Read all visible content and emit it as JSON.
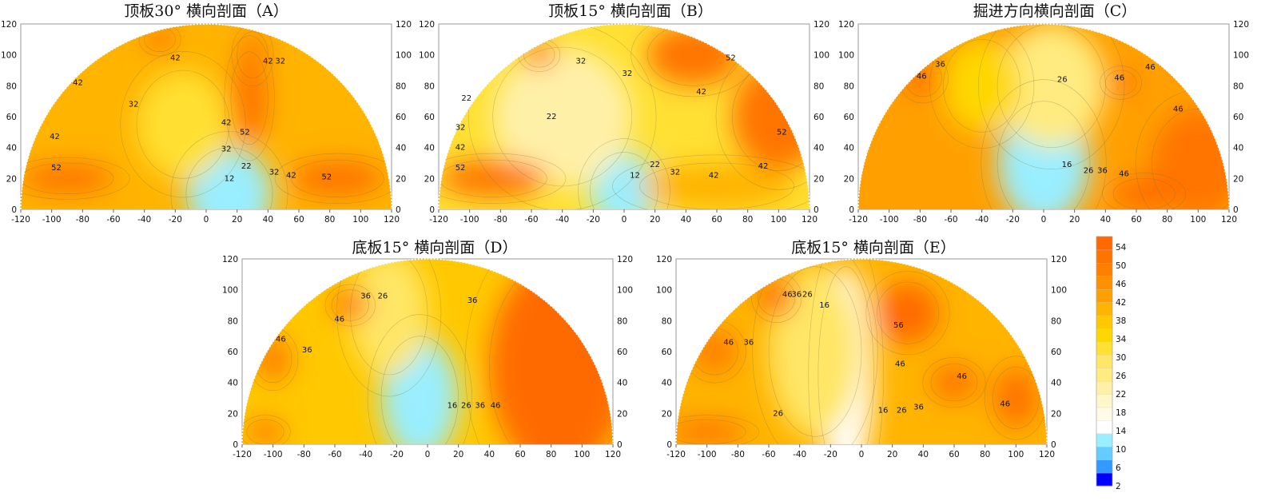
{
  "chart_data": [
    {
      "type": "contour",
      "title": "顶板30° 横向剖面（A）",
      "xlim": [
        -120,
        120
      ],
      "ylim": [
        0,
        120
      ],
      "xticks": [
        "-120",
        "-100",
        "-80",
        "-60",
        "-40",
        "-20",
        "0",
        "20",
        "40",
        "60",
        "80",
        "100",
        "120"
      ],
      "yticks": [
        "0",
        "20",
        "40",
        "60",
        "80",
        "100",
        "120"
      ],
      "bg_level": 40,
      "blobs": [
        {
          "x": 15,
          "y": 10,
          "rx": 28,
          "ry": 30,
          "level": 10
        },
        {
          "x": -15,
          "y": 55,
          "rx": 30,
          "ry": 35,
          "level": 32
        },
        {
          "x": 28,
          "y": 72,
          "rx": 12,
          "ry": 30,
          "level": 52
        },
        {
          "x": 30,
          "y": 100,
          "rx": 10,
          "ry": 15,
          "level": 48
        },
        {
          "x": -90,
          "y": 20,
          "rx": 30,
          "ry": 10,
          "level": 52
        },
        {
          "x": 85,
          "y": 20,
          "rx": 30,
          "ry": 12,
          "level": 52
        },
        {
          "x": -30,
          "y": 110,
          "rx": 10,
          "ry": 8,
          "level": 50
        }
      ],
      "contour_labels": [
        {
          "text": "42",
          "x": -20,
          "y": 98
        },
        {
          "text": "42",
          "x": -83,
          "y": 82
        },
        {
          "text": "42",
          "x": -98,
          "y": 47
        },
        {
          "text": "32",
          "x": -47,
          "y": 68
        },
        {
          "text": "42",
          "x": 40,
          "y": 96
        },
        {
          "text": "32",
          "x": 48,
          "y": 96
        },
        {
          "text": "42",
          "x": 13,
          "y": 56
        },
        {
          "text": "52",
          "x": 25,
          "y": 50
        },
        {
          "text": "32",
          "x": 13,
          "y": 39
        },
        {
          "text": "22",
          "x": 26,
          "y": 28
        },
        {
          "text": "12",
          "x": 15,
          "y": 20
        },
        {
          "text": "32",
          "x": 44,
          "y": 24
        },
        {
          "text": "42",
          "x": 55,
          "y": 22
        },
        {
          "text": "52",
          "x": -97,
          "y": 27
        },
        {
          "text": "52",
          "x": 78,
          "y": 21
        }
      ]
    },
    {
      "type": "contour",
      "title": "顶板15° 横向剖面（B）",
      "xlim": [
        -120,
        120
      ],
      "ylim": [
        0,
        120
      ],
      "xticks": [
        "-120",
        "-100",
        "-80",
        "-60",
        "-40",
        "-20",
        "0",
        "20",
        "40",
        "60",
        "80",
        "100",
        "120"
      ],
      "yticks": [
        "0",
        "20",
        "40",
        "60",
        "80",
        "100",
        "120"
      ],
      "bg_level": 30,
      "blobs": [
        {
          "x": 0,
          "y": 12,
          "rx": 22,
          "ry": 25,
          "level": 10
        },
        {
          "x": -40,
          "y": 60,
          "rx": 45,
          "ry": 45,
          "level": 22
        },
        {
          "x": 45,
          "y": 100,
          "rx": 30,
          "ry": 20,
          "level": 50
        },
        {
          "x": 100,
          "y": 60,
          "rx": 30,
          "ry": 35,
          "level": 52
        },
        {
          "x": 60,
          "y": 15,
          "rx": 50,
          "ry": 15,
          "level": 40
        },
        {
          "x": -85,
          "y": 20,
          "rx": 35,
          "ry": 12,
          "level": 52
        },
        {
          "x": -55,
          "y": 100,
          "rx": 10,
          "ry": 8,
          "level": 50
        }
      ],
      "contour_labels": [
        {
          "text": "32",
          "x": -28,
          "y": 96
        },
        {
          "text": "32",
          "x": 2,
          "y": 88
        },
        {
          "text": "52",
          "x": 69,
          "y": 98
        },
        {
          "text": "22",
          "x": -102,
          "y": 72
        },
        {
          "text": "42",
          "x": 50,
          "y": 76
        },
        {
          "text": "22",
          "x": -47,
          "y": 60
        },
        {
          "text": "32",
          "x": -106,
          "y": 53
        },
        {
          "text": "52",
          "x": 102,
          "y": 50
        },
        {
          "text": "42",
          "x": -106,
          "y": 40
        },
        {
          "text": "52",
          "x": -106,
          "y": 27
        },
        {
          "text": "22",
          "x": 20,
          "y": 29
        },
        {
          "text": "32",
          "x": 33,
          "y": 24
        },
        {
          "text": "12",
          "x": 7,
          "y": 22
        },
        {
          "text": "42",
          "x": 58,
          "y": 22
        },
        {
          "text": "42",
          "x": 90,
          "y": 28
        }
      ]
    },
    {
      "type": "contour",
      "title": "掘进方向横向剖面（C）",
      "xlim": [
        -120,
        120
      ],
      "ylim": [
        0,
        120
      ],
      "xticks": [
        "-120",
        "-100",
        "-80",
        "-60",
        "-40",
        "-20",
        "0",
        "20",
        "40",
        "60",
        "80",
        "100",
        "120"
      ],
      "yticks": [
        "0",
        "20",
        "40",
        "60",
        "80",
        "100",
        "120"
      ],
      "bg_level": 42,
      "blobs": [
        {
          "x": 0,
          "y": 30,
          "rx": 30,
          "ry": 40,
          "level": 12
        },
        {
          "x": 5,
          "y": 80,
          "rx": 35,
          "ry": 40,
          "level": 24
        },
        {
          "x": -40,
          "y": 80,
          "rx": 25,
          "ry": 30,
          "level": 34
        },
        {
          "x": -78,
          "y": 85,
          "rx": 12,
          "ry": 12,
          "level": 50
        },
        {
          "x": 50,
          "y": 82,
          "rx": 10,
          "ry": 8,
          "level": 50
        },
        {
          "x": 100,
          "y": 30,
          "rx": 30,
          "ry": 35,
          "level": 52
        },
        {
          "x": 65,
          "y": 10,
          "rx": 20,
          "ry": 10,
          "level": 54
        }
      ],
      "contour_labels": [
        {
          "text": "36",
          "x": -67,
          "y": 94
        },
        {
          "text": "46",
          "x": -79,
          "y": 86
        },
        {
          "text": "26",
          "x": 12,
          "y": 84
        },
        {
          "text": "46",
          "x": 49,
          "y": 85
        },
        {
          "text": "46",
          "x": 69,
          "y": 92
        },
        {
          "text": "46",
          "x": 87,
          "y": 65
        },
        {
          "text": "16",
          "x": 15,
          "y": 29
        },
        {
          "text": "26",
          "x": 29,
          "y": 25
        },
        {
          "text": "36",
          "x": 38,
          "y": 25
        },
        {
          "text": "46",
          "x": 52,
          "y": 23
        }
      ]
    },
    {
      "type": "contour",
      "title": "底板15° 横向剖面（D）",
      "xlim": [
        -120,
        120
      ],
      "ylim": [
        0,
        120
      ],
      "xticks": [
        "-120",
        "-100",
        "-80",
        "-60",
        "-40",
        "-20",
        "0",
        "20",
        "40",
        "60",
        "80",
        "100",
        "120"
      ],
      "yticks": [
        "0",
        "20",
        "40",
        "60",
        "80",
        "100",
        "120"
      ],
      "bg_level": 38,
      "blobs": [
        {
          "x": -5,
          "y": 30,
          "rx": 25,
          "ry": 40,
          "level": 12
        },
        {
          "x": -25,
          "y": 85,
          "rx": 25,
          "ry": 40,
          "level": 28
        },
        {
          "x": 85,
          "y": 50,
          "rx": 45,
          "ry": 70,
          "level": 54
        },
        {
          "x": -50,
          "y": 90,
          "rx": 12,
          "ry": 10,
          "level": 50
        },
        {
          "x": -100,
          "y": 55,
          "rx": 12,
          "ry": 15,
          "level": 48
        },
        {
          "x": -105,
          "y": 8,
          "rx": 12,
          "ry": 8,
          "level": 50
        }
      ],
      "contour_labels": [
        {
          "text": "36",
          "x": -40,
          "y": 96
        },
        {
          "text": "26",
          "x": -29,
          "y": 96
        },
        {
          "text": "36",
          "x": 29,
          "y": 93
        },
        {
          "text": "46",
          "x": -57,
          "y": 81
        },
        {
          "text": "46",
          "x": -95,
          "y": 68
        },
        {
          "text": "36",
          "x": -78,
          "y": 61
        },
        {
          "text": "16",
          "x": 16,
          "y": 25
        },
        {
          "text": "26",
          "x": 25,
          "y": 25
        },
        {
          "text": "36",
          "x": 34,
          "y": 25
        },
        {
          "text": "46",
          "x": 44,
          "y": 25
        }
      ]
    },
    {
      "type": "contour",
      "title": "底板15° 横向剖面（E）",
      "xlim": [
        -120,
        120
      ],
      "ylim": [
        0,
        120
      ],
      "xticks": [
        "-120",
        "-100",
        "-80",
        "-60",
        "-40",
        "-20",
        "0",
        "20",
        "40",
        "60",
        "80",
        "100",
        "120"
      ],
      "yticks": [
        "0",
        "20",
        "40",
        "60",
        "80",
        "100",
        "120"
      ],
      "bg_level": 40,
      "blobs": [
        {
          "x": -10,
          "y": 45,
          "rx": 18,
          "ry": 70,
          "level": 14
        },
        {
          "x": -30,
          "y": 60,
          "rx": 30,
          "ry": 55,
          "level": 28
        },
        {
          "x": 30,
          "y": 85,
          "rx": 20,
          "ry": 20,
          "level": 56
        },
        {
          "x": 60,
          "y": 40,
          "rx": 15,
          "ry": 12,
          "level": 50
        },
        {
          "x": 100,
          "y": 30,
          "rx": 15,
          "ry": 20,
          "level": 50
        },
        {
          "x": -95,
          "y": 60,
          "rx": 15,
          "ry": 15,
          "level": 48
        },
        {
          "x": -55,
          "y": 95,
          "rx": 12,
          "ry": 12,
          "level": 50
        },
        {
          "x": -100,
          "y": 8,
          "rx": 25,
          "ry": 8,
          "level": 52
        }
      ],
      "contour_labels": [
        {
          "text": "46",
          "x": -48,
          "y": 97
        },
        {
          "text": "36",
          "x": -42,
          "y": 97
        },
        {
          "text": "26",
          "x": -35,
          "y": 97
        },
        {
          "text": "16",
          "x": -24,
          "y": 90
        },
        {
          "text": "56",
          "x": 24,
          "y": 77
        },
        {
          "text": "46",
          "x": -86,
          "y": 66
        },
        {
          "text": "36",
          "x": -73,
          "y": 66
        },
        {
          "text": "46",
          "x": 25,
          "y": 52
        },
        {
          "text": "46",
          "x": 65,
          "y": 44
        },
        {
          "text": "46",
          "x": 93,
          "y": 26
        },
        {
          "text": "26",
          "x": -54,
          "y": 20
        },
        {
          "text": "16",
          "x": 14,
          "y": 22
        },
        {
          "text": "26",
          "x": 26,
          "y": 22
        },
        {
          "text": "36",
          "x": 37,
          "y": 24
        }
      ]
    }
  ],
  "colorbar": {
    "levels": [
      "2",
      "6",
      "10",
      "14",
      "18",
      "22",
      "26",
      "30",
      "34",
      "38",
      "42",
      "46",
      "50",
      "54"
    ],
    "colors": [
      "#0000ff",
      "#3399ff",
      "#66ccff",
      "#99eeff",
      "#ffffff",
      "#fffbe6",
      "#fff6cc",
      "#fff0a8",
      "#ffeb80",
      "#ffe666",
      "#ffe033",
      "#ffd700",
      "#ffc800",
      "#ffb400",
      "#ffa000",
      "#ff9000",
      "#ff8000",
      "#ff7400",
      "#ff6a00"
    ]
  }
}
